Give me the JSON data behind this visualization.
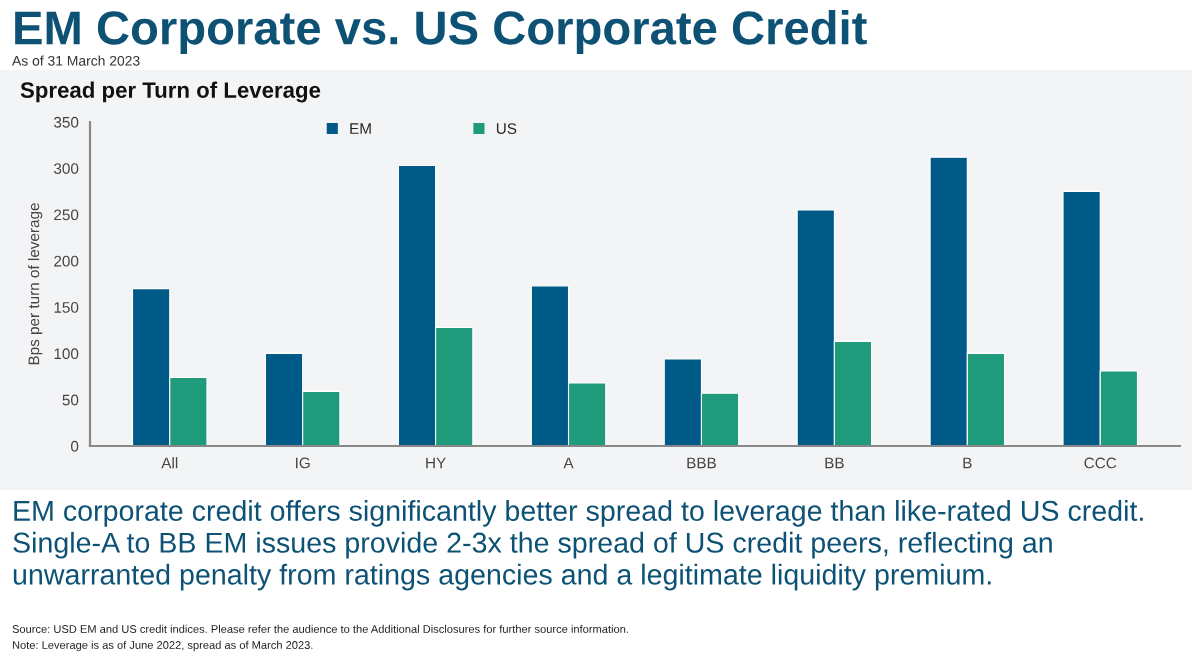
{
  "chart_data": {
    "type": "bar",
    "title": "EM Corporate vs. US Corporate Credit",
    "subtitle": "As of 31 March 2023",
    "ylabel": "Bps per turn of leverage",
    "categories": [
      "All",
      "IG",
      "HY",
      "A",
      "BBB",
      "BB",
      "B",
      "CCC"
    ],
    "series": [
      {
        "name": "EM",
        "color": "#005a87",
        "values": [
          170,
          100,
          303,
          173,
          94,
          255,
          312,
          275
        ]
      },
      {
        "name": "US",
        "color": "#1f9b7b",
        "values": [
          74,
          59,
          128,
          68,
          57,
          113,
          100,
          81
        ]
      }
    ],
    "ylim": [
      0,
      350
    ],
    "yticks": [
      0,
      50,
      100,
      150,
      200,
      250,
      300,
      350
    ],
    "grid": false,
    "legend": "top",
    "annotations": [
      "Spread per Turn of Leverage",
      "EM corporate credit offers significantly better spread to leverage than like-rated US credit. Single-A to BB EM issues provide 2-3x the spread of US credit peers, reflecting an unwarranted penalty from ratings agencies and a legitimate liquidity premium.",
      "Source: USD EM and US credit indices. Please refer the audience to the Additional Disclosures for further source information.",
      "Note: Leverage is as of June 2022, spread as of March 2023."
    ]
  }
}
